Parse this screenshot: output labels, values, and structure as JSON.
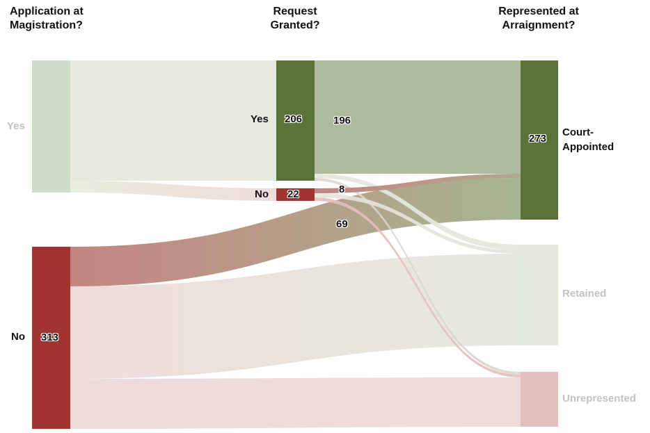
{
  "headers": {
    "application": "Application at\nMagistration?",
    "request": "Request\nGranted?",
    "represented": "Represented at\nArraignment?"
  },
  "nodes": {
    "app_yes": {
      "label": "Yes"
    },
    "app_no": {
      "label": "No",
      "value": "313"
    },
    "req_yes": {
      "label": "Yes",
      "value": "206"
    },
    "req_no": {
      "label": "No",
      "value": "22"
    },
    "court": {
      "label": "Court-\nAppointed",
      "value": "273"
    },
    "retained": {
      "label": "Retained"
    },
    "unrep": {
      "label": "Unrepresented"
    }
  },
  "flows": {
    "granted_to_court": "196",
    "denied_to_court": "8",
    "noapp_to_court": "69"
  },
  "colors": {
    "green": "#5b733a",
    "red": "#a03530",
    "light_green": "#ccdbc7",
    "light_red": "#e2bfbd"
  }
}
